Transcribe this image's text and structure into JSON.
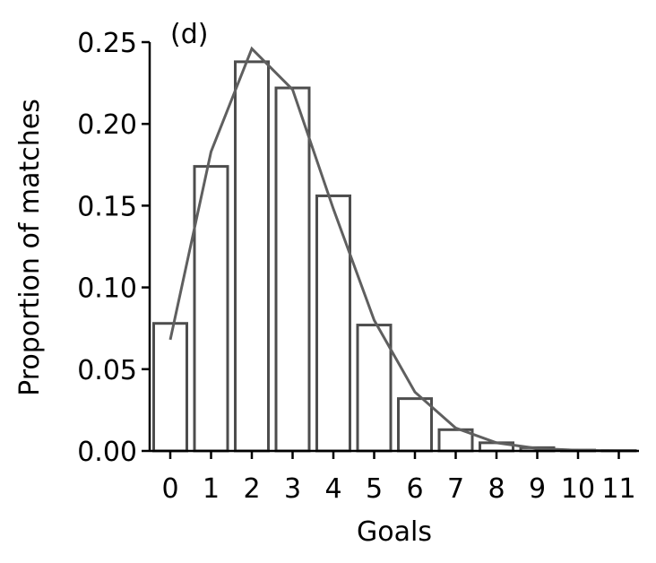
{
  "chart_data": {
    "type": "bar",
    "panel_label": "(d)",
    "xlabel": "Goals",
    "ylabel": "Proportion of matches",
    "categories": [
      "0",
      "1",
      "2",
      "3",
      "4",
      "5",
      "6",
      "7",
      "8",
      "9",
      "10",
      "11"
    ],
    "values": [
      0.078,
      0.174,
      0.238,
      0.222,
      0.156,
      0.077,
      0.032,
      0.013,
      0.005,
      0.002,
      0.0005,
      0.0002
    ],
    "line_values": [
      0.068,
      0.183,
      0.246,
      0.221,
      0.148,
      0.08,
      0.036,
      0.014,
      0.005,
      0.0015,
      0.0004,
      0.0001
    ],
    "ylim": [
      0,
      0.25
    ],
    "yticks": [
      "0.00",
      "0.05",
      "0.10",
      "0.15",
      "0.20",
      "0.25"
    ],
    "ytick_values": [
      0,
      0.05,
      0.1,
      0.15,
      0.2,
      0.25
    ],
    "grid": false
  }
}
